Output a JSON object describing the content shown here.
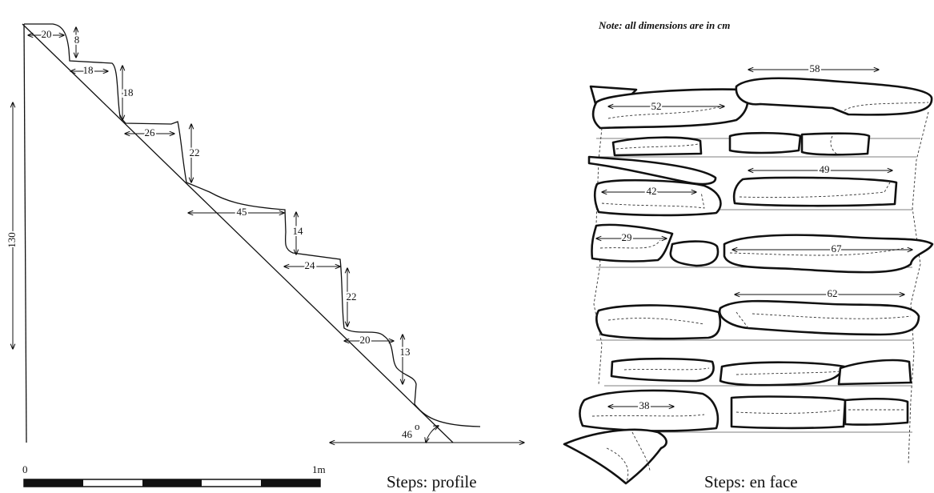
{
  "note": "Note: all dimensions are in cm",
  "profile": {
    "dimensions": [
      "20",
      "8",
      "18",
      "18",
      "26",
      "22",
      "45",
      "14",
      "24",
      "22",
      "20",
      "13"
    ],
    "height": "130",
    "angle": {
      "value": "46",
      "sup": "o"
    },
    "scale": {
      "start": "0",
      "end": "1m"
    },
    "caption": "Steps: profile"
  },
  "en_face": {
    "dimensions": [
      "58",
      "52",
      "49",
      "42",
      "29",
      "67",
      "62",
      "38"
    ],
    "caption": "Steps: en face"
  }
}
